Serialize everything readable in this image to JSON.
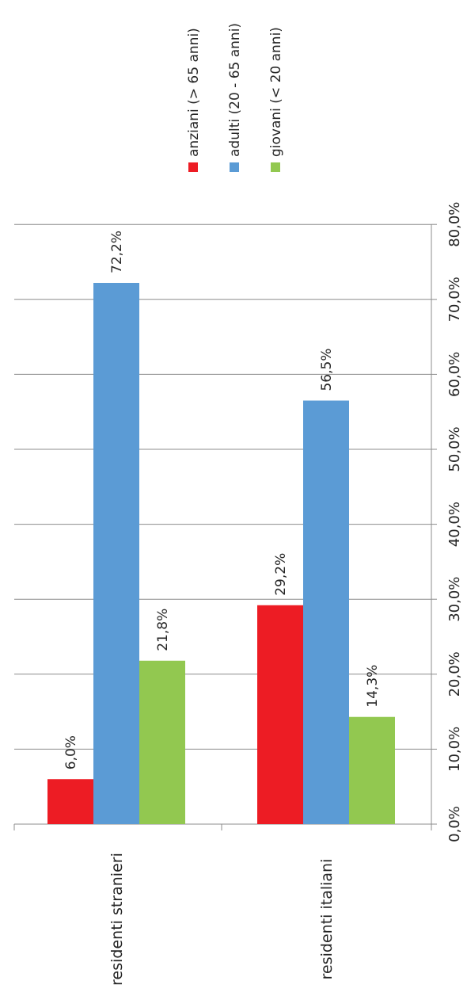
{
  "chart_data": {
    "type": "bar",
    "orientation": "horizontal",
    "categories": [
      "residenti stranieri",
      "residenti italiani"
    ],
    "series": [
      {
        "name": "anziani (> 65 anni)",
        "color": "#ED1C24",
        "values": [
          6.0,
          29.2
        ],
        "labels": [
          "6,0%",
          "29,2%"
        ]
      },
      {
        "name": "adulti (20 - 65 anni)",
        "color": "#5B9BD5",
        "values": [
          72.2,
          56.5
        ],
        "labels": [
          "72,2%",
          "56,5%"
        ]
      },
      {
        "name": "giovani (< 20 anni)",
        "color": "#92C850",
        "values": [
          21.8,
          14.3
        ],
        "labels": [
          "21,8%",
          "14,3%"
        ]
      }
    ],
    "xlim": [
      0,
      80
    ],
    "ticks": [
      0,
      10,
      20,
      30,
      40,
      50,
      60,
      70,
      80
    ],
    "tick_labels": [
      "0,0%",
      "10,0%",
      "20,0%",
      "30,0%",
      "40,0%",
      "50,0%",
      "60,0%",
      "70,0%",
      "80,0%"
    ],
    "grid": true,
    "legend_position": "top",
    "title": "",
    "xlabel": "",
    "ylabel": ""
  }
}
